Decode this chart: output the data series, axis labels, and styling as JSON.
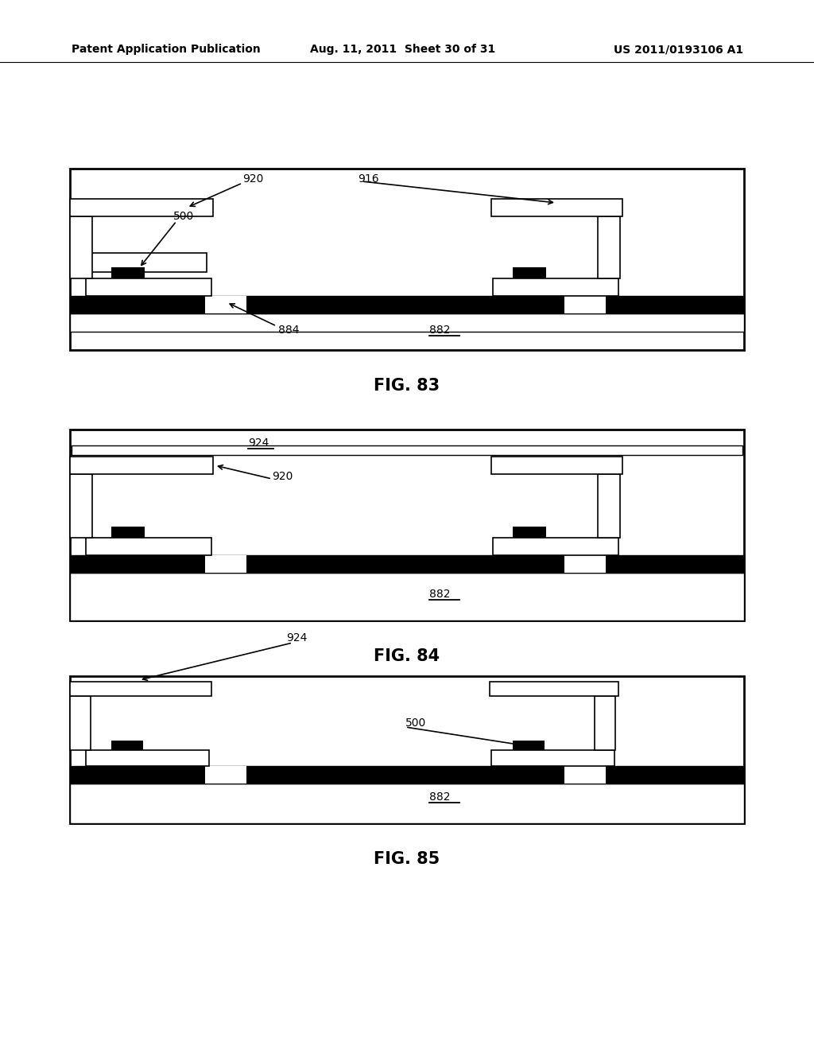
{
  "bg_color": "#ffffff",
  "header_left": "Patent Application Publication",
  "header_mid": "Aug. 11, 2011  Sheet 30 of 31",
  "header_right": "US 2011/0193106 A1",
  "fig_captions": [
    "FIG. 83",
    "FIG. 84",
    "FIG. 85"
  ]
}
